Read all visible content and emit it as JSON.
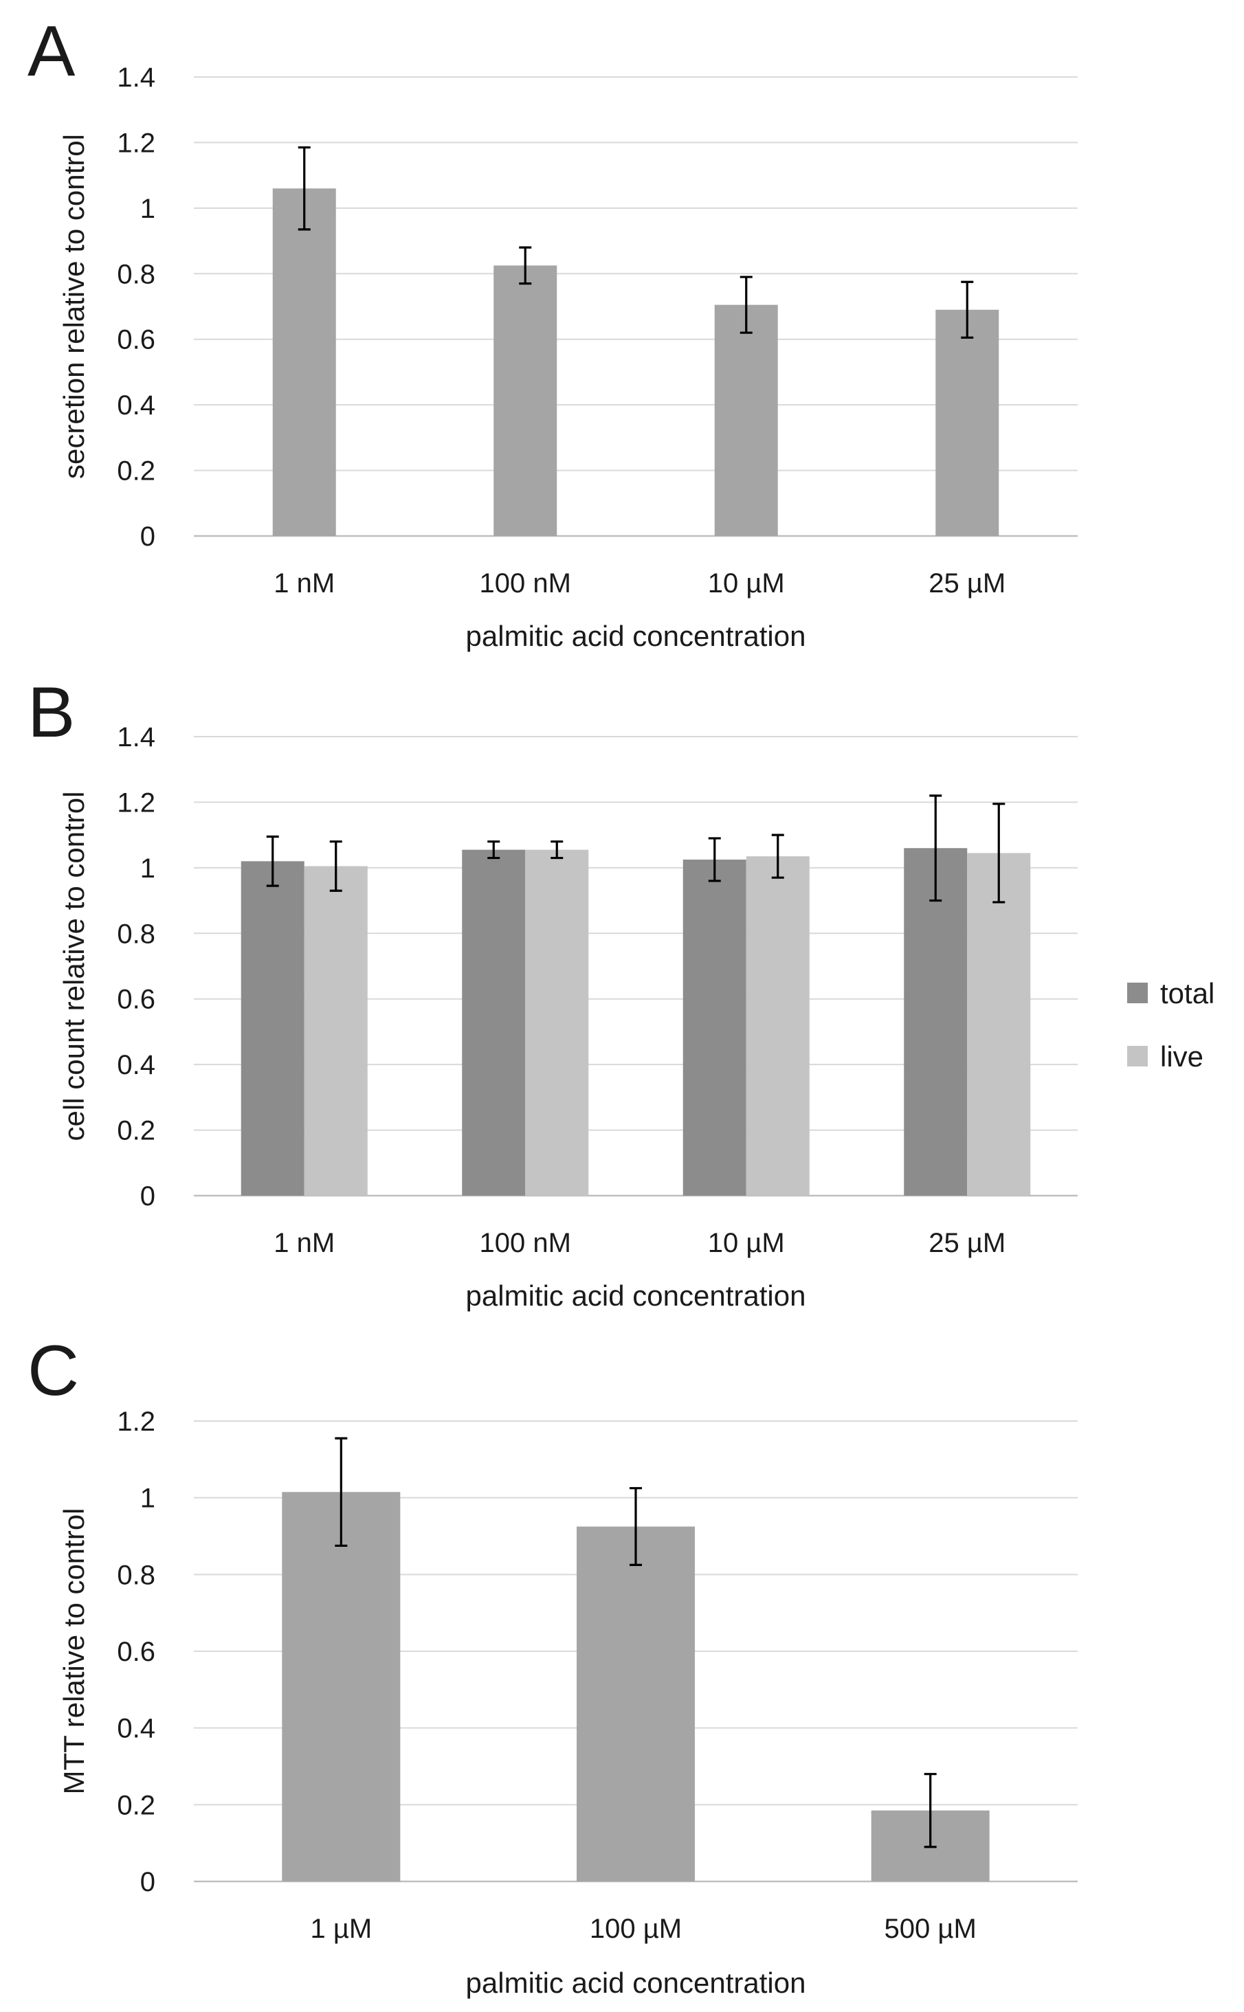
{
  "chart_data": [
    {
      "panel": "A",
      "type": "bar",
      "title": "",
      "xlabel": "palmitic acid concentration",
      "ylabel": "secretion relative to control",
      "ylim": [
        0,
        1.4
      ],
      "yticks": [
        "0",
        "0.2",
        "0.4",
        "0.6",
        "0.8",
        "1",
        "1.2",
        "1.4"
      ],
      "grid": true,
      "categories": [
        "1 nM",
        "100 nM",
        "10 µM",
        "25 µM"
      ],
      "series": [
        {
          "name": "secretion",
          "color": "#a5a5a5",
          "values": [
            1.06,
            0.825,
            0.705,
            0.69
          ],
          "errors": [
            0.125,
            0.055,
            0.085,
            0.085
          ]
        }
      ]
    },
    {
      "panel": "B",
      "type": "bar",
      "title": "",
      "xlabel": "palmitic acid concentration",
      "ylabel": "cell count relative to control",
      "ylim": [
        0,
        1.4
      ],
      "yticks": [
        "0",
        "0.2",
        "0.4",
        "0.6",
        "0.8",
        "1",
        "1.2",
        "1.4"
      ],
      "grid": true,
      "legend": "right",
      "categories": [
        "1 nM",
        "100 nM",
        "10 µM",
        "25 µM"
      ],
      "series": [
        {
          "name": "total",
          "color": "#8c8c8c",
          "values": [
            1.02,
            1.055,
            1.025,
            1.06
          ],
          "errors": [
            0.075,
            0.025,
            0.065,
            0.16
          ]
        },
        {
          "name": "live",
          "color": "#c4c4c4",
          "values": [
            1.005,
            1.055,
            1.035,
            1.045
          ],
          "errors": [
            0.075,
            0.025,
            0.065,
            0.15
          ]
        }
      ]
    },
    {
      "panel": "C",
      "type": "bar",
      "title": "",
      "xlabel": "palmitic acid concentration",
      "ylabel": "MTT relative to control",
      "ylim": [
        0,
        1.2
      ],
      "yticks": [
        "0",
        "0.2",
        "0.4",
        "0.6",
        "0.8",
        "1",
        "1.2"
      ],
      "grid": true,
      "categories": [
        "1 µM",
        "100 µM",
        "500 µM"
      ],
      "series": [
        {
          "name": "MTT",
          "color": "#a5a5a5",
          "values": [
            1.015,
            0.925,
            0.185
          ],
          "errors": [
            0.14,
            0.1,
            0.095
          ]
        }
      ]
    }
  ]
}
